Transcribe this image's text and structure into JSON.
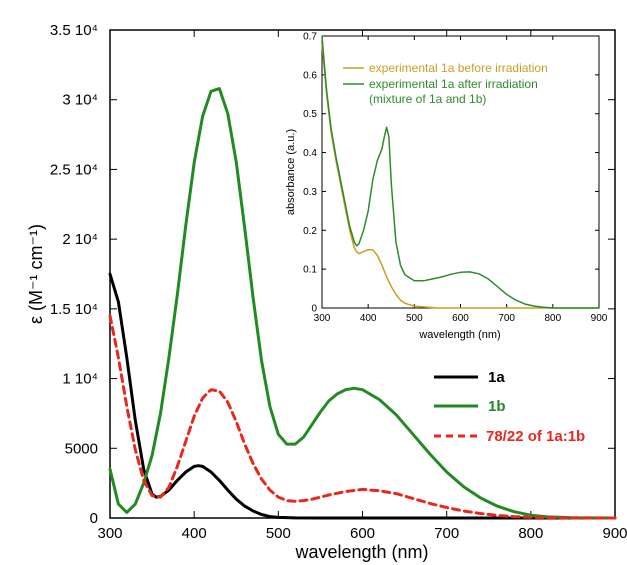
{
  "chart_data": [
    {
      "type": "line",
      "xlabel": "wavelength (nm)",
      "ylabel": "ε (M⁻¹ cm⁻¹)",
      "xlim": [
        300,
        900
      ],
      "ylim": [
        0,
        35000
      ],
      "x_ticks": [
        "300",
        "400",
        "500",
        "600",
        "700",
        "800",
        "900"
      ],
      "y_ticks": [
        "0",
        "5000",
        "1 10⁴",
        "1.5 10⁴",
        "2 10⁴",
        "2.5 10⁴",
        "3 10⁴",
        "3.5 10⁴"
      ],
      "y_tick_values": [
        0,
        5000,
        10000,
        15000,
        20000,
        25000,
        30000,
        35000
      ],
      "legend_position": "bottom-right",
      "series": [
        {
          "name": "1a",
          "color": "#000000",
          "style": "solid",
          "x": [
            300,
            310,
            320,
            330,
            340,
            350,
            355,
            360,
            370,
            380,
            390,
            400,
            405,
            410,
            420,
            430,
            440,
            450,
            460,
            470,
            480,
            490,
            500,
            520,
            550,
            600,
            700,
            800,
            900
          ],
          "y": [
            17500,
            15500,
            11500,
            7000,
            3500,
            1700,
            1500,
            1550,
            2000,
            2700,
            3300,
            3700,
            3750,
            3700,
            3300,
            2700,
            2000,
            1350,
            850,
            500,
            250,
            100,
            40,
            10,
            0,
            0,
            0,
            0,
            0
          ]
        },
        {
          "name": "1b",
          "color": "#238a23",
          "style": "solid",
          "x": [
            300,
            310,
            320,
            330,
            340,
            350,
            360,
            370,
            380,
            390,
            400,
            410,
            420,
            430,
            440,
            450,
            460,
            470,
            480,
            490,
            500,
            510,
            520,
            530,
            540,
            550,
            560,
            570,
            580,
            590,
            600,
            620,
            640,
            660,
            680,
            700,
            720,
            740,
            760,
            780,
            800,
            820,
            850,
            900
          ],
          "y": [
            3500,
            1000,
            400,
            1000,
            2500,
            4500,
            7500,
            11500,
            16000,
            21000,
            25500,
            28800,
            30600,
            30800,
            29000,
            25500,
            20800,
            15800,
            11300,
            8000,
            6000,
            5300,
            5300,
            5800,
            6700,
            7600,
            8400,
            8900,
            9200,
            9300,
            9200,
            8500,
            7400,
            6000,
            4600,
            3300,
            2250,
            1450,
            850,
            450,
            200,
            80,
            20,
            0
          ]
        },
        {
          "name": "78/22 of 1a:1b",
          "color": "#e8281e",
          "style": "dashed",
          "x": [
            300,
            310,
            320,
            330,
            340,
            350,
            360,
            370,
            380,
            390,
            400,
            410,
            420,
            430,
            440,
            450,
            460,
            470,
            480,
            490,
            500,
            510,
            520,
            530,
            540,
            560,
            580,
            600,
            620,
            640,
            660,
            680,
            700,
            720,
            740,
            760,
            780,
            800,
            850,
            900
          ],
          "y": [
            14500,
            11500,
            8000,
            4900,
            2700,
            1600,
            1500,
            2200,
            3700,
            5500,
            7300,
            8600,
            9200,
            9100,
            8300,
            6900,
            5300,
            3900,
            2800,
            2000,
            1500,
            1250,
            1200,
            1250,
            1350,
            1650,
            1900,
            2050,
            1950,
            1750,
            1400,
            1050,
            750,
            500,
            320,
            190,
            100,
            50,
            10,
            0
          ]
        }
      ]
    },
    {
      "type": "line",
      "xlabel": "wavelength (nm)",
      "ylabel": "absorbance (a.u.)",
      "xlim": [
        300,
        900
      ],
      "ylim": [
        0,
        0.7
      ],
      "x_ticks": [
        "300",
        "400",
        "500",
        "600",
        "700",
        "800",
        "900"
      ],
      "y_ticks": [
        "0",
        "0.1",
        "0.2",
        "0.3",
        "0.4",
        "0.5",
        "0.6",
        "0.7"
      ],
      "legend_position": "top-right",
      "series": [
        {
          "name": "experimental 1a before irradiation",
          "color": "#c8a020",
          "style": "solid",
          "x": [
            300,
            310,
            320,
            330,
            340,
            350,
            360,
            370,
            375,
            380,
            390,
            400,
            410,
            420,
            430,
            440,
            450,
            460,
            470,
            480,
            500,
            550,
            600,
            700,
            800,
            900
          ],
          "y": [
            0.68,
            0.55,
            0.45,
            0.38,
            0.32,
            0.26,
            0.2,
            0.155,
            0.145,
            0.14,
            0.145,
            0.15,
            0.15,
            0.135,
            0.11,
            0.08,
            0.055,
            0.035,
            0.02,
            0.012,
            0.005,
            0.0,
            0.0,
            0.0,
            0.0,
            0.0
          ]
        },
        {
          "name": "experimental 1a after irradiation",
          "color": "#2e8b2e",
          "style": "solid",
          "x": [
            300,
            310,
            320,
            330,
            340,
            350,
            360,
            370,
            375,
            380,
            390,
            400,
            410,
            420,
            430,
            435,
            440,
            445,
            450,
            460,
            470,
            480,
            500,
            520,
            540,
            560,
            580,
            600,
            620,
            640,
            660,
            680,
            700,
            720,
            740,
            760,
            780,
            800,
            850,
            900
          ],
          "y": [
            0.7,
            0.56,
            0.46,
            0.39,
            0.33,
            0.27,
            0.21,
            0.17,
            0.16,
            0.165,
            0.2,
            0.25,
            0.33,
            0.38,
            0.41,
            0.44,
            0.465,
            0.44,
            0.32,
            0.17,
            0.11,
            0.085,
            0.07,
            0.07,
            0.075,
            0.08,
            0.087,
            0.092,
            0.093,
            0.088,
            0.075,
            0.055,
            0.035,
            0.02,
            0.01,
            0.005,
            0.002,
            0.0,
            0.0,
            0.0
          ]
        }
      ],
      "legend_note": "(mixture of 1a and 1b)"
    }
  ]
}
